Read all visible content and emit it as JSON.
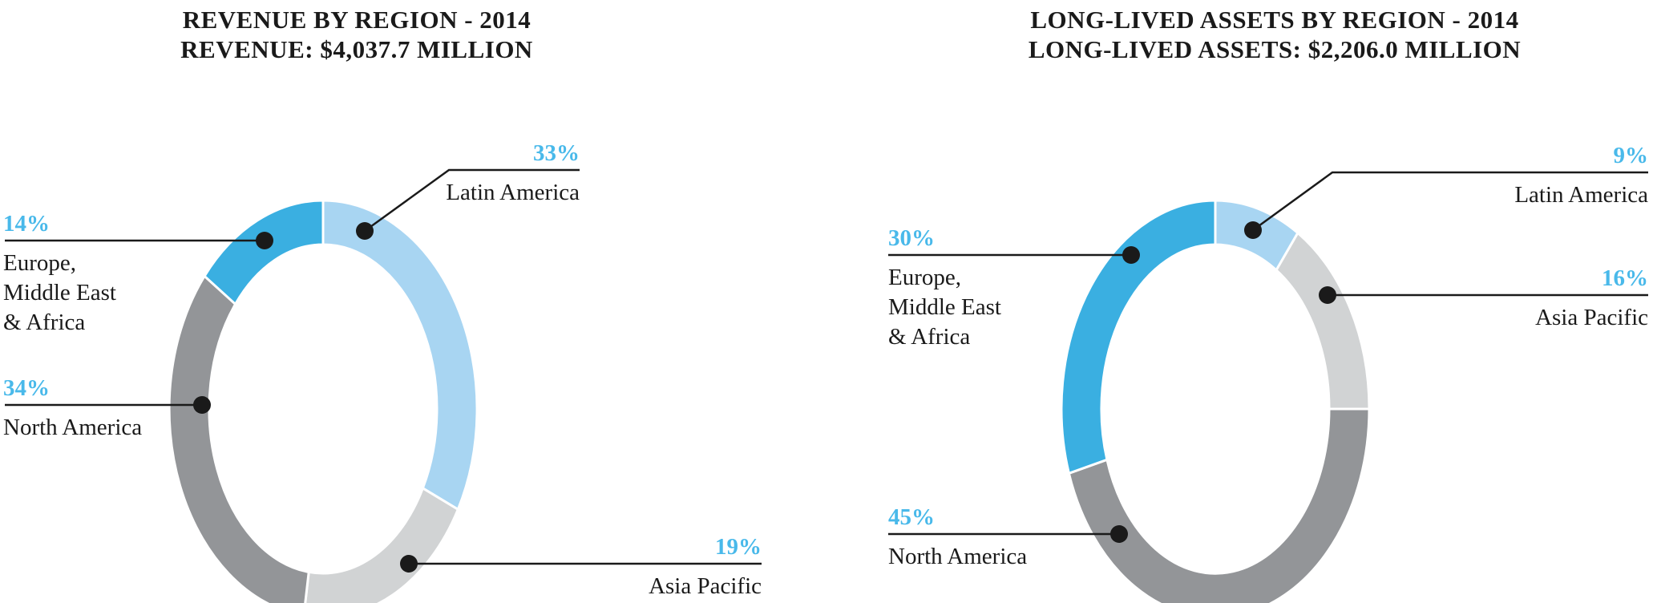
{
  "palette": {
    "accent_blue": "#49B9EA",
    "text": "#1A1A1A",
    "leader_line": "#1A1A1A",
    "background": "#FFFFFF",
    "segment_colors": {
      "light_blue": "#A8D5F2",
      "medium_blue": "#3AAFE1",
      "dark_gray": "#939598",
      "light_gray": "#D1D3D4"
    }
  },
  "chart_data": [
    {
      "type": "pie",
      "variant": "donut",
      "title": "REVENUE BY REGION - 2014",
      "subtitle": "REVENUE: $4,037.7 MILLION",
      "total_million_usd": 4037.7,
      "start_angle_deg": 0,
      "direction": "clockwise",
      "legend": "none",
      "units": "percent",
      "segments": [
        {
          "label": "Latin America",
          "value": 33,
          "pct_text": "33%",
          "color": "#A8D5F2",
          "label_lines": [
            "Latin America"
          ]
        },
        {
          "label": "Asia Pacific",
          "value": 19,
          "pct_text": "19%",
          "color": "#D1D3D4",
          "label_lines": [
            "Asia Pacific"
          ]
        },
        {
          "label": "North America",
          "value": 34,
          "pct_text": "34%",
          "color": "#939598",
          "label_lines": [
            "North America"
          ]
        },
        {
          "label": "Europe, Middle East & Africa",
          "value": 14,
          "pct_text": "14%",
          "color": "#3AAFE1",
          "label_lines": [
            "Europe,",
            "Middle East",
            "& Africa"
          ]
        }
      ]
    },
    {
      "type": "pie",
      "variant": "donut",
      "title": "LONG-LIVED ASSETS BY REGION - 2014",
      "subtitle": "LONG-LIVED ASSETS: $2,206.0 MILLION",
      "total_million_usd": 2206.0,
      "start_angle_deg": 0,
      "direction": "clockwise",
      "legend": "none",
      "units": "percent",
      "segments": [
        {
          "label": "Latin America",
          "value": 9,
          "pct_text": "9%",
          "color": "#A8D5F2",
          "label_lines": [
            "Latin America"
          ]
        },
        {
          "label": "Asia Pacific",
          "value": 16,
          "pct_text": "16%",
          "color": "#D1D3D4",
          "label_lines": [
            "Asia Pacific"
          ]
        },
        {
          "label": "North America",
          "value": 45,
          "pct_text": "45%",
          "color": "#939598",
          "label_lines": [
            "North America"
          ]
        },
        {
          "label": "Europe, Middle East & Africa",
          "value": 30,
          "pct_text": "30%",
          "color": "#3AAFE1",
          "label_lines": [
            "Europe,",
            "Middle East",
            "& Africa"
          ]
        }
      ]
    }
  ]
}
